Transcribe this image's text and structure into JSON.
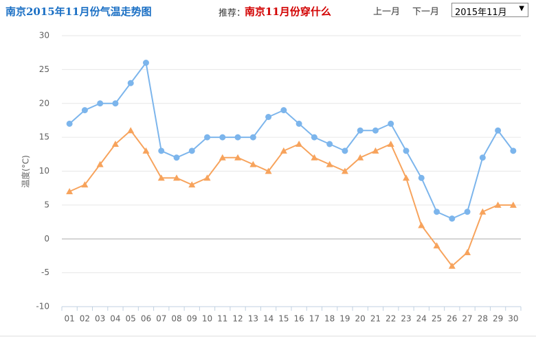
{
  "header": {
    "title": "南京2015年11月份气温走势图",
    "recommend_label": "推荐：",
    "recommend_link": "南京11月份穿什么",
    "prev": "上一月",
    "next": "下一月",
    "month_select": "2015年11月"
  },
  "chart_data": {
    "type": "line",
    "y_label": "温度(°C)",
    "categories": [
      "01",
      "02",
      "03",
      "04",
      "05",
      "06",
      "07",
      "08",
      "09",
      "10",
      "11",
      "12",
      "13",
      "14",
      "15",
      "16",
      "17",
      "18",
      "19",
      "20",
      "21",
      "22",
      "23",
      "24",
      "25",
      "26",
      "27",
      "28",
      "29",
      "30"
    ],
    "series": [
      {
        "color": "#7cb5ec",
        "marker": "circle",
        "values": [
          17,
          19,
          20,
          20,
          23,
          26,
          13,
          12,
          13,
          15,
          15,
          15,
          15,
          18,
          19,
          17,
          15,
          14,
          13,
          16,
          16,
          17,
          13,
          9,
          4,
          3,
          4,
          12,
          16,
          13
        ]
      },
      {
        "color": "#f7a35c",
        "marker": "triangle",
        "values": [
          7,
          8,
          11,
          14,
          16,
          13,
          9,
          9,
          8,
          9,
          12,
          12,
          11,
          10,
          13,
          14,
          12,
          11,
          10,
          12,
          13,
          14,
          9,
          2,
          -1,
          -4,
          -2,
          4,
          5,
          5
        ]
      }
    ],
    "ylim": [
      -10,
      30
    ],
    "yticks": [
      -10,
      -5,
      0,
      5,
      10,
      15,
      20,
      25,
      30
    ],
    "grid": true
  }
}
